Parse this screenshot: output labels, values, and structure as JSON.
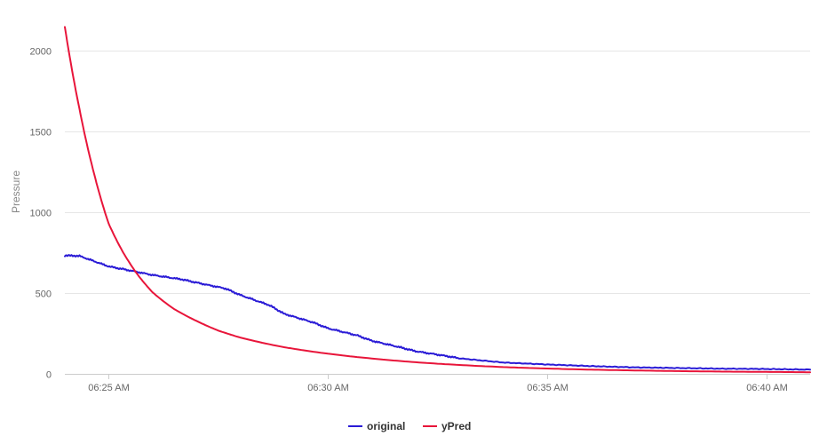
{
  "chart_data": {
    "type": "line",
    "title": "",
    "xlabel": "",
    "ylabel": "Pressure",
    "ylim": [
      0,
      2150
    ],
    "xlim": [
      "06:24:00",
      "06:41:00"
    ],
    "y_ticks": [
      0,
      500,
      1000,
      1500,
      2000
    ],
    "x_ticks": [
      {
        "time": "06:25:00",
        "label": "06:25 AM"
      },
      {
        "time": "06:30:00",
        "label": "06:30 AM"
      },
      {
        "time": "06:35:00",
        "label": "06:35 AM"
      },
      {
        "time": "06:40:00",
        "label": "06:40 AM"
      }
    ],
    "grid": "horizontal",
    "legend_position": "bottom",
    "series": [
      {
        "name": "original",
        "color": "#2a1bd6",
        "x": [
          "06:24:00",
          "06:24:20",
          "06:25:00",
          "06:25:20",
          "06:26:00",
          "06:26:40",
          "06:27:00",
          "06:27:40",
          "06:28:00",
          "06:28:40",
          "06:29:00",
          "06:29:40",
          "06:30:00",
          "06:30:40",
          "06:31:00",
          "06:31:40",
          "06:32:00",
          "06:32:40",
          "06:33:00",
          "06:34:00",
          "06:35:00",
          "06:36:00",
          "06:37:00",
          "06:38:00",
          "06:39:00",
          "06:40:00",
          "06:41:00"
        ],
        "y": [
          733,
          730,
          665,
          648,
          612,
          585,
          565,
          528,
          488,
          425,
          372,
          318,
          282,
          238,
          205,
          163,
          140,
          112,
          96,
          70,
          58,
          48,
          40,
          36,
          32,
          30,
          26
        ]
      },
      {
        "name": "yPred",
        "color": "#e8153a",
        "x": [
          "06:24:00",
          "06:24:20",
          "06:24:40",
          "06:25:00",
          "06:25:20",
          "06:25:40",
          "06:26:00",
          "06:26:30",
          "06:27:00",
          "06:27:30",
          "06:28:00",
          "06:29:00",
          "06:30:00",
          "06:31:00",
          "06:32:00",
          "06:33:00",
          "06:34:00",
          "06:35:00",
          "06:36:00",
          "06:37:00",
          "06:38:00",
          "06:39:00",
          "06:40:00",
          "06:41:00"
        ],
        "y": [
          2148,
          1640,
          1240,
          930,
          750,
          612,
          505,
          400,
          328,
          268,
          225,
          165,
          125,
          95,
          72,
          55,
          42,
          33,
          26,
          21,
          17,
          14,
          12,
          10
        ]
      }
    ]
  }
}
